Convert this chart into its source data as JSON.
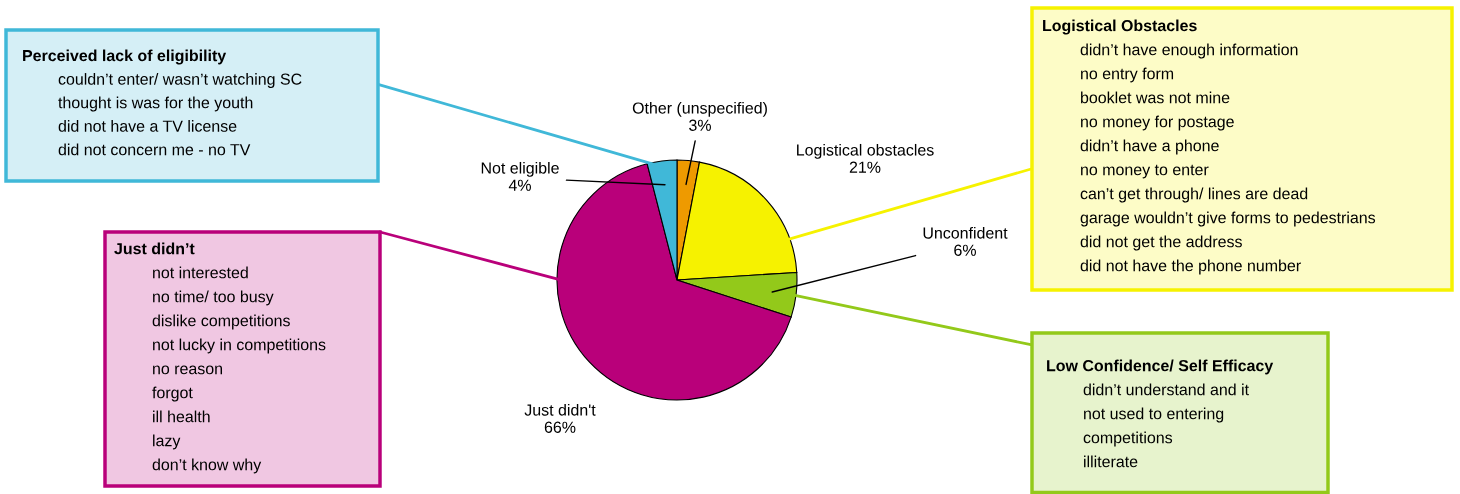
{
  "chart_data": {
    "type": "pie",
    "categories": [
      "Other (unspecified)",
      "Logistical obstacles",
      "Unconfident",
      "Just didn't",
      "Not eligible"
    ],
    "values": [
      3,
      21,
      6,
      66,
      4
    ],
    "value_labels": [
      "3%",
      "21%",
      "6%",
      "66%",
      "4%"
    ],
    "colors": [
      "#ee9a00",
      "#f6f200",
      "#93c91a",
      "#b9007a",
      "#40b8d8"
    ],
    "annotations": [
      "Perceived lack of eligibility\ncouldn’t enter/ wasn’t watching SC\nthought is was for the youth\ndid not have a TV license\ndid not concern me - no TV",
      "Logistical Obstacles\ndidn’t have enough information\nno entry form\nbooklet was not mine\nno money for postage\ndidn’t have a phone\nno money to enter\ncan’t get through/ lines are dead\ngarage wouldn’t give forms to pedestrians\ndid not get the address\ndid not have the phone number",
      "Just didn’t\nnot interested\nno time/ too busy\ndislike competitions\nnot lucky in competitions\nno reason\nforgot\nill health\nlazy\ndon’t know why",
      "Low Confidence/ Self Efficacy\ndidn’t understand and it\nnot used to entering\ncompetitions\nilliterate"
    ]
  }
}
